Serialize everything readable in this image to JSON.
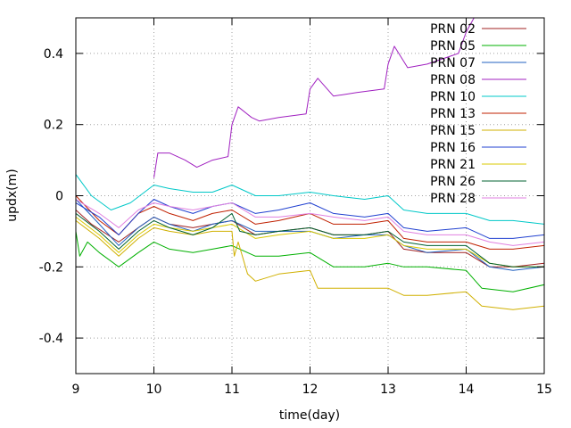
{
  "chart_data": {
    "type": "line",
    "title": "",
    "xlabel": "time(day)",
    "ylabel": "updx(m)",
    "xlim": [
      9,
      15
    ],
    "ylim": [
      -0.5,
      0.5
    ],
    "grid": true,
    "legend_position": "top-right",
    "x_ticks": [
      9,
      10,
      11,
      12,
      13,
      14,
      15
    ],
    "y_ticks": [
      -0.4,
      -0.2,
      0,
      0.2,
      0.4
    ],
    "x_tick_labels": [
      "9",
      "10",
      "11",
      "12",
      "13",
      "14",
      "15"
    ],
    "y_tick_labels": [
      "-0.4",
      "-0.2",
      "0",
      "0.2",
      "0.4"
    ],
    "series": [
      {
        "name": "PRN 02",
        "color": "#a02020",
        "points": [
          [
            9,
            -0.04
          ],
          [
            9.2,
            -0.08
          ],
          [
            9.55,
            -0.13
          ],
          [
            9.8,
            -0.09
          ],
          [
            10,
            -0.06
          ],
          [
            10.2,
            -0.08
          ],
          [
            10.5,
            -0.09
          ],
          [
            10.75,
            -0.08
          ],
          [
            11,
            -0.07
          ],
          [
            11.3,
            -0.11
          ],
          [
            11.6,
            -0.1
          ],
          [
            12,
            -0.09
          ],
          [
            12.3,
            -0.11
          ],
          [
            12.7,
            -0.11
          ],
          [
            13,
            -0.1
          ],
          [
            13.2,
            -0.15
          ],
          [
            13.5,
            -0.16
          ],
          [
            14,
            -0.16
          ],
          [
            14.3,
            -0.2
          ],
          [
            14.6,
            -0.2
          ],
          [
            15,
            -0.19
          ]
        ]
      },
      {
        "name": "PRN 05",
        "color": "#00b000",
        "points": [
          [
            9,
            -0.1
          ],
          [
            9.05,
            -0.17
          ],
          [
            9.15,
            -0.13
          ],
          [
            9.3,
            -0.16
          ],
          [
            9.55,
            -0.2
          ],
          [
            9.8,
            -0.16
          ],
          [
            10,
            -0.13
          ],
          [
            10.2,
            -0.15
          ],
          [
            10.5,
            -0.16
          ],
          [
            10.75,
            -0.15
          ],
          [
            11,
            -0.14
          ],
          [
            11.3,
            -0.17
          ],
          [
            11.6,
            -0.17
          ],
          [
            12,
            -0.16
          ],
          [
            12.3,
            -0.2
          ],
          [
            12.7,
            -0.2
          ],
          [
            13,
            -0.19
          ],
          [
            13.2,
            -0.2
          ],
          [
            13.5,
            -0.2
          ],
          [
            14,
            -0.21
          ],
          [
            14.2,
            -0.26
          ],
          [
            14.6,
            -0.27
          ],
          [
            15,
            -0.25
          ]
        ]
      },
      {
        "name": "PRN 07",
        "color": "#2060c0",
        "points": [
          [
            9,
            -0.01
          ],
          [
            9.3,
            -0.08
          ],
          [
            9.55,
            -0.14
          ],
          [
            9.8,
            -0.09
          ],
          [
            10,
            -0.06
          ],
          [
            10.2,
            -0.08
          ],
          [
            10.5,
            -0.1
          ],
          [
            10.75,
            -0.08
          ],
          [
            11,
            -0.07
          ],
          [
            11.3,
            -0.1
          ],
          [
            11.6,
            -0.1
          ],
          [
            12,
            -0.1
          ],
          [
            12.3,
            -0.12
          ],
          [
            12.7,
            -0.11
          ],
          [
            13,
            -0.11
          ],
          [
            13.2,
            -0.14
          ],
          [
            13.5,
            -0.16
          ],
          [
            14,
            -0.15
          ],
          [
            14.3,
            -0.2
          ],
          [
            14.6,
            -0.21
          ],
          [
            15,
            -0.2
          ]
        ]
      },
      {
        "name": "PRN 08",
        "color": "#a020c0",
        "points": [
          [
            10,
            0.05
          ],
          [
            10.05,
            0.12
          ],
          [
            10.2,
            0.12
          ],
          [
            10.4,
            0.1
          ],
          [
            10.55,
            0.08
          ],
          [
            10.75,
            0.1
          ],
          [
            10.95,
            0.11
          ],
          [
            11,
            0.2
          ],
          [
            11.08,
            0.25
          ],
          [
            11.25,
            0.22
          ],
          [
            11.35,
            0.21
          ],
          [
            11.6,
            0.22
          ],
          [
            11.95,
            0.23
          ],
          [
            12,
            0.3
          ],
          [
            12.1,
            0.33
          ],
          [
            12.3,
            0.28
          ],
          [
            12.6,
            0.29
          ],
          [
            12.95,
            0.3
          ],
          [
            13,
            0.37
          ],
          [
            13.08,
            0.42
          ],
          [
            13.25,
            0.36
          ],
          [
            13.5,
            0.37
          ],
          [
            13.9,
            0.4
          ],
          [
            14,
            0.46
          ],
          [
            14.1,
            0.5
          ]
        ]
      },
      {
        "name": "PRN 10",
        "color": "#00c8c8",
        "points": [
          [
            9,
            0.06
          ],
          [
            9.2,
            0.0
          ],
          [
            9.45,
            -0.04
          ],
          [
            9.7,
            -0.02
          ],
          [
            10,
            0.03
          ],
          [
            10.2,
            0.02
          ],
          [
            10.5,
            0.01
          ],
          [
            10.75,
            0.01
          ],
          [
            11,
            0.03
          ],
          [
            11.3,
            0.0
          ],
          [
            11.6,
            0.0
          ],
          [
            12,
            0.01
          ],
          [
            12.3,
            0.0
          ],
          [
            12.7,
            -0.01
          ],
          [
            13,
            0.0
          ],
          [
            13.2,
            -0.04
          ],
          [
            13.5,
            -0.05
          ],
          [
            14,
            -0.05
          ],
          [
            14.3,
            -0.07
          ],
          [
            14.6,
            -0.07
          ],
          [
            15,
            -0.08
          ]
        ]
      },
      {
        "name": "PRN 13",
        "color": "#c02000",
        "points": [
          [
            9,
            0.0
          ],
          [
            9.3,
            -0.07
          ],
          [
            9.55,
            -0.11
          ],
          [
            9.8,
            -0.05
          ],
          [
            10,
            -0.03
          ],
          [
            10.2,
            -0.05
          ],
          [
            10.5,
            -0.07
          ],
          [
            10.75,
            -0.05
          ],
          [
            11,
            -0.04
          ],
          [
            11.3,
            -0.08
          ],
          [
            11.6,
            -0.07
          ],
          [
            12,
            -0.05
          ],
          [
            12.3,
            -0.08
          ],
          [
            12.7,
            -0.08
          ],
          [
            13,
            -0.07
          ],
          [
            13.2,
            -0.12
          ],
          [
            13.5,
            -0.13
          ],
          [
            14,
            -0.13
          ],
          [
            14.3,
            -0.15
          ],
          [
            14.6,
            -0.15
          ],
          [
            15,
            -0.14
          ]
        ]
      },
      {
        "name": "PRN 15",
        "color": "#d0b000",
        "points": [
          [
            9,
            -0.07
          ],
          [
            9.3,
            -0.12
          ],
          [
            9.55,
            -0.17
          ],
          [
            9.8,
            -0.12
          ],
          [
            10,
            -0.09
          ],
          [
            10.2,
            -0.1
          ],
          [
            10.5,
            -0.11
          ],
          [
            10.75,
            -0.1
          ],
          [
            11,
            -0.1
          ],
          [
            11.03,
            -0.17
          ],
          [
            11.08,
            -0.13
          ],
          [
            11.2,
            -0.22
          ],
          [
            11.3,
            -0.24
          ],
          [
            11.6,
            -0.22
          ],
          [
            12,
            -0.21
          ],
          [
            12.1,
            -0.26
          ],
          [
            12.5,
            -0.26
          ],
          [
            13,
            -0.26
          ],
          [
            13.2,
            -0.28
          ],
          [
            13.5,
            -0.28
          ],
          [
            14,
            -0.27
          ],
          [
            14.2,
            -0.31
          ],
          [
            14.6,
            -0.32
          ],
          [
            15,
            -0.31
          ]
        ]
      },
      {
        "name": "PRN 16",
        "color": "#2040d0",
        "points": [
          [
            9,
            -0.02
          ],
          [
            9.3,
            -0.06
          ],
          [
            9.55,
            -0.11
          ],
          [
            9.8,
            -0.05
          ],
          [
            10,
            -0.01
          ],
          [
            10.2,
            -0.03
          ],
          [
            10.5,
            -0.05
          ],
          [
            10.75,
            -0.03
          ],
          [
            11,
            -0.02
          ],
          [
            11.3,
            -0.05
          ],
          [
            11.6,
            -0.04
          ],
          [
            12,
            -0.02
          ],
          [
            12.3,
            -0.05
          ],
          [
            12.7,
            -0.06
          ],
          [
            13,
            -0.05
          ],
          [
            13.2,
            -0.09
          ],
          [
            13.5,
            -0.1
          ],
          [
            14,
            -0.09
          ],
          [
            14.3,
            -0.12
          ],
          [
            14.6,
            -0.12
          ],
          [
            15,
            -0.11
          ]
        ]
      },
      {
        "name": "PRN 21",
        "color": "#d8c800",
        "points": [
          [
            9,
            -0.06
          ],
          [
            9.3,
            -0.11
          ],
          [
            9.55,
            -0.16
          ],
          [
            9.8,
            -0.11
          ],
          [
            10,
            -0.08
          ],
          [
            10.2,
            -0.09
          ],
          [
            10.5,
            -0.1
          ],
          [
            10.75,
            -0.09
          ],
          [
            11,
            -0.08
          ],
          [
            11.3,
            -0.12
          ],
          [
            11.6,
            -0.11
          ],
          [
            12,
            -0.1
          ],
          [
            12.3,
            -0.12
          ],
          [
            12.7,
            -0.12
          ],
          [
            13,
            -0.11
          ],
          [
            13.2,
            -0.14
          ],
          [
            13.5,
            -0.15
          ],
          [
            14,
            -0.15
          ],
          [
            14.3,
            -0.19
          ],
          [
            14.6,
            -0.2
          ],
          [
            15,
            -0.2
          ]
        ]
      },
      {
        "name": "PRN 26",
        "color": "#006030",
        "points": [
          [
            9,
            -0.05
          ],
          [
            9.3,
            -0.1
          ],
          [
            9.55,
            -0.15
          ],
          [
            9.8,
            -0.1
          ],
          [
            10,
            -0.07
          ],
          [
            10.2,
            -0.09
          ],
          [
            10.5,
            -0.11
          ],
          [
            10.75,
            -0.09
          ],
          [
            11,
            -0.05
          ],
          [
            11.1,
            -0.1
          ],
          [
            11.3,
            -0.11
          ],
          [
            11.6,
            -0.1
          ],
          [
            12,
            -0.09
          ],
          [
            12.3,
            -0.11
          ],
          [
            12.7,
            -0.11
          ],
          [
            13,
            -0.1
          ],
          [
            13.2,
            -0.13
          ],
          [
            13.5,
            -0.14
          ],
          [
            14,
            -0.14
          ],
          [
            14.3,
            -0.19
          ],
          [
            14.6,
            -0.2
          ],
          [
            15,
            -0.2
          ]
        ]
      },
      {
        "name": "PRN 28",
        "color": "#e080e0",
        "points": [
          [
            9,
            -0.01
          ],
          [
            9.3,
            -0.05
          ],
          [
            9.55,
            -0.09
          ],
          [
            9.8,
            -0.04
          ],
          [
            10,
            -0.02
          ],
          [
            10.2,
            -0.03
          ],
          [
            10.5,
            -0.04
          ],
          [
            10.75,
            -0.03
          ],
          [
            11,
            -0.02
          ],
          [
            11.3,
            -0.06
          ],
          [
            11.6,
            -0.06
          ],
          [
            12,
            -0.05
          ],
          [
            12.3,
            -0.06
          ],
          [
            12.7,
            -0.07
          ],
          [
            13,
            -0.06
          ],
          [
            13.2,
            -0.1
          ],
          [
            13.5,
            -0.11
          ],
          [
            14,
            -0.11
          ],
          [
            14.3,
            -0.13
          ],
          [
            14.6,
            -0.14
          ],
          [
            15,
            -0.13
          ]
        ]
      }
    ]
  }
}
